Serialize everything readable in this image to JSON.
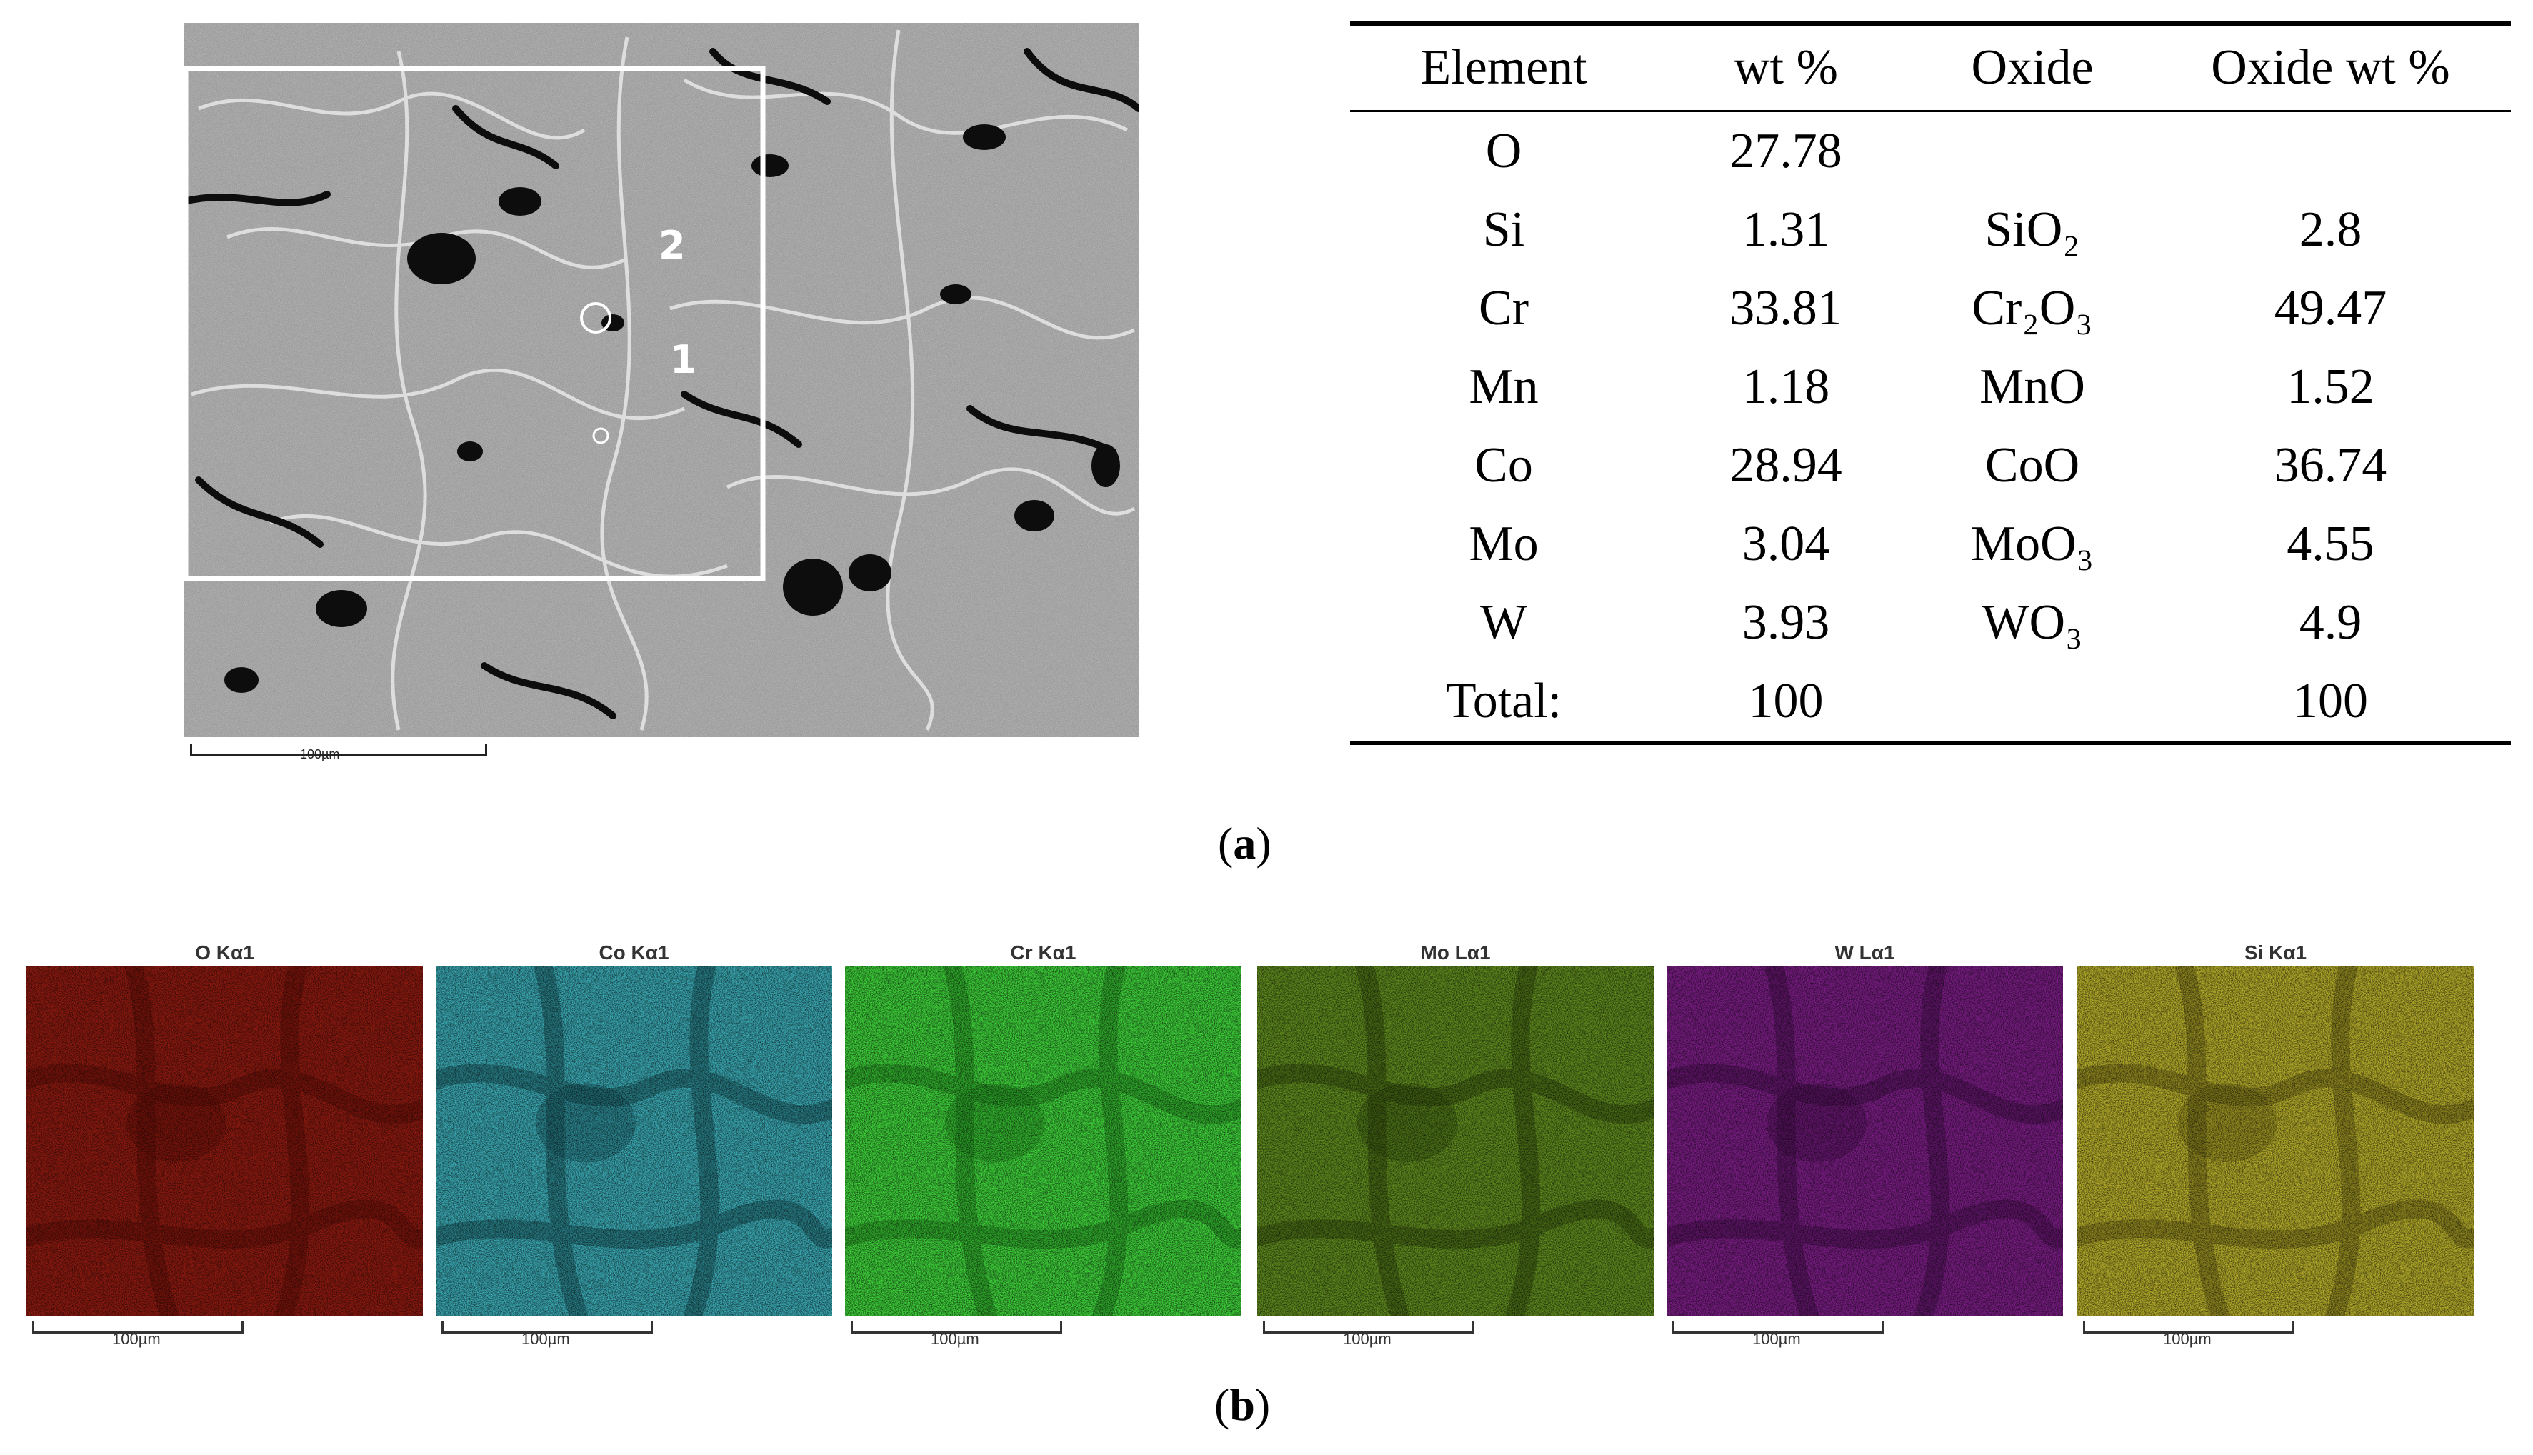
{
  "figure_a": {
    "sem": {
      "markers": [
        "2",
        "1"
      ],
      "scale_label": "100µm"
    },
    "caption": "a",
    "table": {
      "headers": [
        "Element",
        "wt %",
        "Oxide",
        "Oxide wt %"
      ],
      "rows": [
        {
          "element": "O",
          "wt": "27.78",
          "oxide": "",
          "oxide_wt": ""
        },
        {
          "element": "Si",
          "wt": "1.31",
          "oxide": "SiO₂",
          "oxide_wt": "2.8"
        },
        {
          "element": "Cr",
          "wt": "33.81",
          "oxide": "Cr₂O₃",
          "oxide_wt": "49.47"
        },
        {
          "element": "Mn",
          "wt": "1.18",
          "oxide": "MnO",
          "oxide_wt": "1.52"
        },
        {
          "element": "Co",
          "wt": "28.94",
          "oxide": "CoO",
          "oxide_wt": "36.74"
        },
        {
          "element": "Mo",
          "wt": "3.04",
          "oxide": "MoO₃",
          "oxide_wt": "4.55"
        },
        {
          "element": "W",
          "wt": "3.93",
          "oxide": "WO₃",
          "oxide_wt": "4.9"
        },
        {
          "element": "Total:",
          "wt": "100",
          "oxide": "",
          "oxide_wt": "100"
        }
      ]
    }
  },
  "figure_b": {
    "caption": "b",
    "maps": [
      {
        "title": "O Kα1",
        "color": "#8e1a10",
        "dark": "#5a0c06",
        "scale": "100µm"
      },
      {
        "title": "Co Kα1",
        "color": "#3aa8b2",
        "dark": "#12464c",
        "scale": "100µm"
      },
      {
        "title": "Cr Kα1",
        "color": "#3ed13a",
        "dark": "#1d7a1b",
        "scale": "100µm"
      },
      {
        "title": "Mo Lα1",
        "color": "#5f8a1e",
        "dark": "#2c420c",
        "scale": "100µm"
      },
      {
        "title": "W Lα1",
        "color": "#7a1d84",
        "dark": "#3b0c42",
        "scale": "100µm"
      },
      {
        "title": "Si Kα1",
        "color": "#b5ac2a",
        "dark": "#5e5812",
        "scale": "100µm"
      }
    ]
  }
}
